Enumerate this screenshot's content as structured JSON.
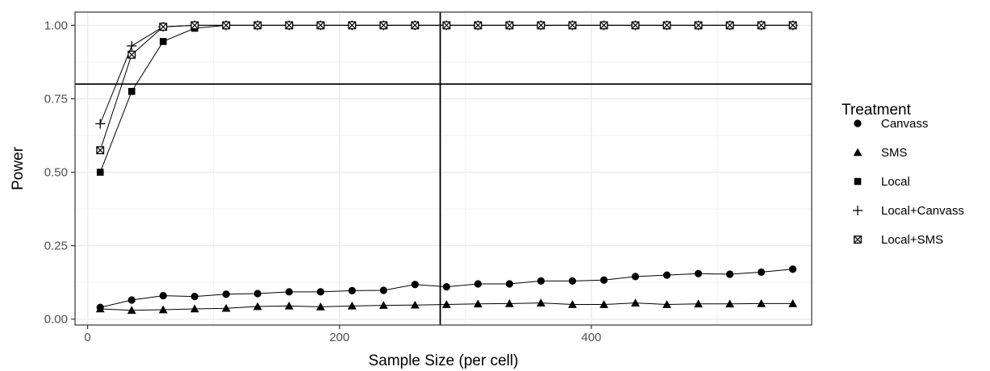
{
  "chart_data": {
    "type": "line",
    "title": "",
    "xlabel": "Sample Size (per cell)",
    "ylabel": "Power",
    "xlim": [
      -10,
      575
    ],
    "ylim": [
      -0.02,
      1.045
    ],
    "x_ticks": [
      0,
      200,
      400
    ],
    "x_tick_labels": [
      "0",
      "200",
      "400"
    ],
    "y_ticks": [
      0,
      0.25,
      0.5,
      0.75,
      1.0
    ],
    "y_tick_labels": [
      "0.00",
      "0.25",
      "0.50",
      "0.75",
      "1.00"
    ],
    "grid": true,
    "reference_lines": {
      "vertical_x": 280,
      "horizontal_y": 0.8
    },
    "legend": {
      "title": "Treatment",
      "position": "right"
    },
    "x": [
      10,
      35,
      60,
      85,
      110,
      135,
      160,
      185,
      210,
      235,
      260,
      285,
      310,
      335,
      360,
      385,
      410,
      435,
      460,
      485,
      510,
      535,
      560
    ],
    "series": [
      {
        "name": "Canvass",
        "marker": "circle",
        "values": [
          0.04,
          0.065,
          0.08,
          0.077,
          0.085,
          0.087,
          0.093,
          0.093,
          0.097,
          0.098,
          0.118,
          0.11,
          0.12,
          0.12,
          0.13,
          0.13,
          0.133,
          0.145,
          0.15,
          0.155,
          0.153,
          0.16,
          0.17
        ]
      },
      {
        "name": "SMS",
        "marker": "triangle",
        "values": [
          0.035,
          0.03,
          0.032,
          0.035,
          0.037,
          0.043,
          0.045,
          0.042,
          0.045,
          0.047,
          0.048,
          0.05,
          0.052,
          0.053,
          0.055,
          0.05,
          0.05,
          0.055,
          0.05,
          0.052,
          0.052,
          0.053,
          0.053
        ]
      },
      {
        "name": "Local",
        "marker": "square",
        "values": [
          0.5,
          0.775,
          0.945,
          0.99,
          1.0,
          1.0,
          1.0,
          1.0,
          1.0,
          1.0,
          1.0,
          1.0,
          1.0,
          1.0,
          1.0,
          1.0,
          1.0,
          1.0,
          1.0,
          1.0,
          1.0,
          1.0,
          1.0
        ]
      },
      {
        "name": "Local+Canvass",
        "marker": "plus",
        "values": [
          0.665,
          0.93,
          0.995,
          1.0,
          1.0,
          1.0,
          1.0,
          1.0,
          1.0,
          1.0,
          1.0,
          1.0,
          1.0,
          1.0,
          1.0,
          1.0,
          1.0,
          1.0,
          1.0,
          1.0,
          1.0,
          1.0,
          1.0
        ]
      },
      {
        "name": "Local+SMS",
        "marker": "boxx",
        "values": [
          0.575,
          0.9,
          0.995,
          1.0,
          1.0,
          1.0,
          1.0,
          1.0,
          1.0,
          1.0,
          1.0,
          1.0,
          1.0,
          1.0,
          1.0,
          1.0,
          1.0,
          1.0,
          1.0,
          1.0,
          1.0,
          1.0,
          1.0
        ]
      }
    ]
  }
}
